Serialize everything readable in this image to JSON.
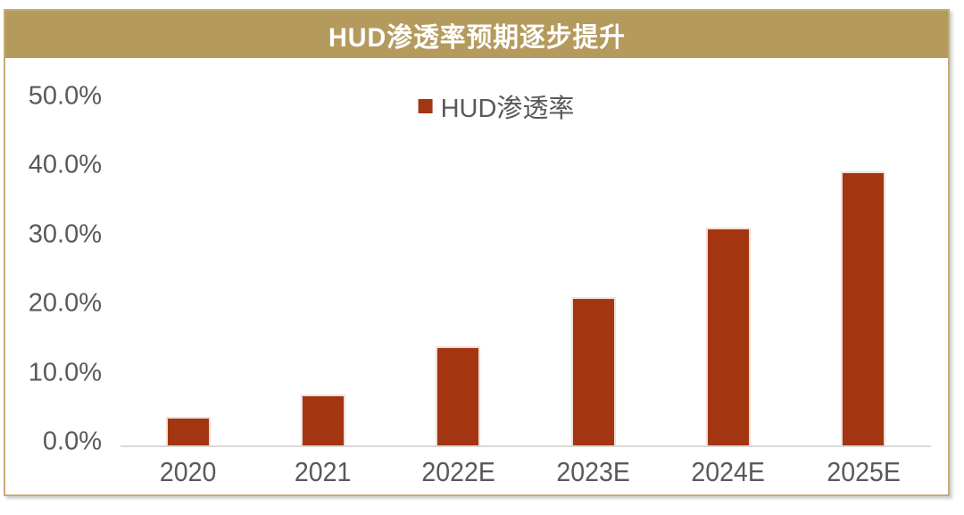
{
  "panel": {
    "title": "HUD渗透率预期逐步提升"
  },
  "legend": {
    "label": "HUD渗透率"
  },
  "chart_data": {
    "type": "bar",
    "title": "HUD渗透率预期逐步提升",
    "categories": [
      "2020",
      "2021",
      "2022E",
      "2023E",
      "2024E",
      "2025E"
    ],
    "values": [
      4.1,
      7.4,
      14.4,
      21.5,
      31.5,
      39.7
    ],
    "series": [
      {
        "name": "HUD渗透率",
        "values": [
          4.1,
          7.4,
          14.4,
          21.5,
          31.5,
          39.7
        ]
      }
    ],
    "unit": "%",
    "xlabel": "",
    "ylabel": "",
    "ylim": [
      0,
      50
    ],
    "ytick_step": 10,
    "ytick_labels": [
      "0.0%",
      "10.0%",
      "20.0%",
      "30.0%",
      "40.0%",
      "50.0%"
    ],
    "legend_position": "top-center",
    "grid": false
  },
  "colors": {
    "title_bar_bg": "#B49A5C",
    "panel_border": "#C5AE74",
    "bar_fill": "#A43511",
    "axis_text": "#595959",
    "baseline": "#D9D9D9",
    "title_text": "#FFFFFF"
  }
}
